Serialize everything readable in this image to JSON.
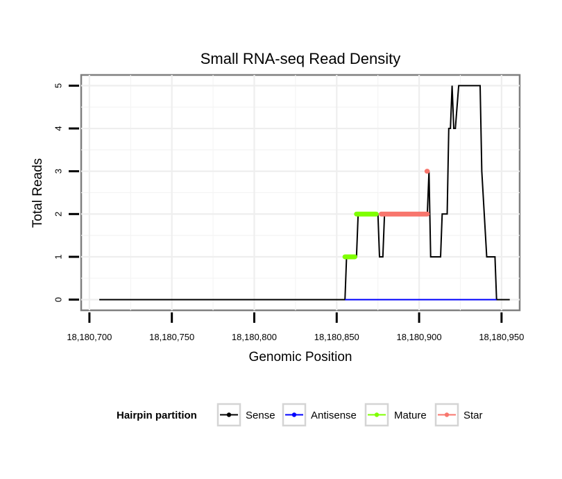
{
  "chart_data": {
    "type": "line",
    "title": "Small RNA-seq Read Density",
    "xlabel": "Genomic Position",
    "ylabel": "Total Reads",
    "xlim": [
      18180695,
      18180961
    ],
    "ylim": [
      -0.25,
      5.25
    ],
    "x_ticks": [
      18180700,
      18180750,
      18180800,
      18180850,
      18180900,
      18180950
    ],
    "x_tick_labels": [
      "18,180,700",
      "18,180,750",
      "18,180,800",
      "18,180,850",
      "18,180,900",
      "18,180,950"
    ],
    "y_ticks": [
      0,
      1,
      2,
      3,
      4,
      5
    ],
    "y_tick_labels": [
      "0",
      "1",
      "2",
      "3",
      "4",
      "5"
    ],
    "legend": {
      "title": "Hairpin partition",
      "position": "bottom",
      "entries": [
        "Sense",
        "Antisense",
        "Mature",
        "Star"
      ]
    },
    "series": [
      {
        "name": "Sense",
        "color": "#000000",
        "style": "line",
        "x": [
          18180706,
          18180855,
          18180856,
          18180862,
          18180863,
          18180875,
          18180876,
          18180878,
          18180879,
          18180905,
          18180906,
          18180907,
          18180913,
          18180914,
          18180917,
          18180918,
          18180919,
          18180920,
          18180921,
          18180922,
          18180924,
          18180925,
          18180937,
          18180938,
          18180941,
          18180942,
          18180946,
          18180947,
          18180955
        ],
        "y": [
          0,
          0,
          1,
          1,
          2,
          2,
          1,
          1,
          2,
          2,
          3,
          1,
          1,
          2,
          2,
          4,
          4,
          5,
          4,
          4,
          5,
          5,
          5,
          3,
          1,
          1,
          1,
          0,
          0
        ]
      },
      {
        "name": "Antisense",
        "color": "#0000ff",
        "style": "line",
        "x": [
          18180855,
          18180947
        ],
        "y": [
          0,
          0
        ]
      },
      {
        "name": "Mature",
        "color": "#7fff00",
        "style": "thick",
        "segments": [
          {
            "x": [
              18180855,
              18180861
            ],
            "y": 1
          },
          {
            "x": [
              18180862,
              18180874
            ],
            "y": 2
          }
        ]
      },
      {
        "name": "Star",
        "color": "#f8766d",
        "style": "thick",
        "segments": [
          {
            "x": [
              18180877,
              18180905
            ],
            "y": 2
          },
          {
            "x": [
              18180905,
              18180906
            ],
            "y": 3
          }
        ]
      }
    ]
  }
}
